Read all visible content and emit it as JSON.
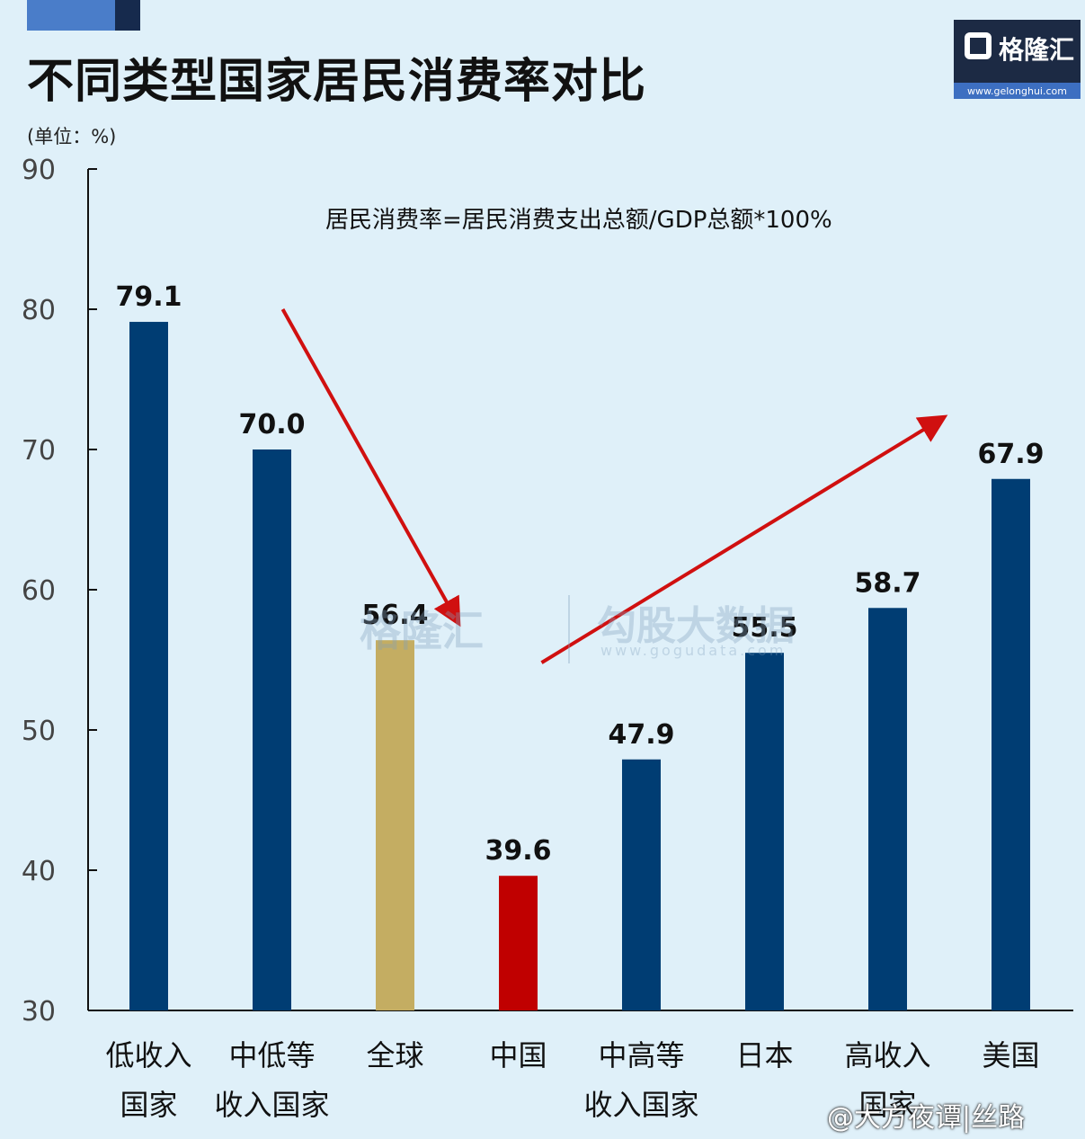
{
  "page": {
    "title": "不同类型国家居民消费率对比",
    "unit_label": "(单位：%)",
    "formula": "居民消费率=居民消费支出总额/GDP总额*100%",
    "logo_name": "格隆汇",
    "logo_url": "www.gelonghui.com",
    "watermark_a": "格隆汇",
    "watermark_a_url": "www.gelonghui.com",
    "watermark_b": "勾股大数据",
    "watermark_b_url": "www.gogudata.com",
    "weibo_tag": "@大方夜谭|丝路"
  },
  "chart_data": {
    "type": "bar",
    "categories": [
      [
        "低收入",
        "国家"
      ],
      [
        "中低等",
        "收入国家"
      ],
      [
        "全球"
      ],
      [
        "中国"
      ],
      [
        "中高等",
        "收入国家"
      ],
      [
        "日本"
      ],
      [
        "高收入",
        "国家"
      ],
      [
        "美国"
      ]
    ],
    "values": [
      79.1,
      70.0,
      56.4,
      39.6,
      47.9,
      55.5,
      58.7,
      67.9
    ],
    "value_labels": [
      "79.1",
      "70.0",
      "56.4",
      "39.6",
      "47.9",
      "55.5",
      "58.7",
      "67.9"
    ],
    "colors": [
      "#003d73",
      "#003d73",
      "#c4ad62",
      "#c00000",
      "#003d73",
      "#003d73",
      "#003d73",
      "#003d73"
    ],
    "ylim": [
      30,
      90
    ],
    "yticks": [
      30,
      40,
      50,
      60,
      70,
      80,
      90
    ],
    "arrow_color": "#d01010",
    "grid": false,
    "legend": "none"
  }
}
